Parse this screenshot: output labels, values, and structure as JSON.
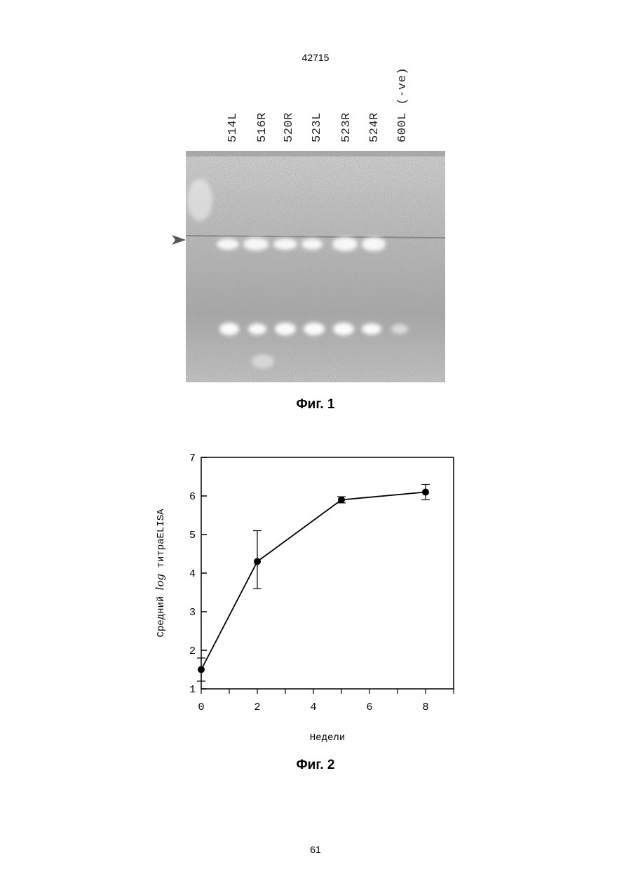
{
  "header": {
    "doc_number": "42715"
  },
  "figure1": {
    "lane_labels": [
      "514L",
      "516R",
      "520R",
      "523L",
      "523R",
      "524R",
      "600L (-ve)"
    ],
    "caption": "Фиг. 1"
  },
  "figure2": {
    "caption": "Фиг. 2",
    "chart_data": {
      "type": "line",
      "x": [
        0,
        2,
        5,
        8
      ],
      "series": [
        {
          "values": [
            1.5,
            4.3,
            5.9,
            6.1
          ],
          "error_low": [
            1.2,
            3.6,
            5.82,
            5.9
          ],
          "error_high": [
            1.8,
            5.1,
            5.98,
            6.3
          ]
        }
      ],
      "xlabel": "Недели",
      "ylabel_prefix": "Средний",
      "ylabel_log": "log",
      "ylabel_suffix": "титраELISA",
      "xlim": [
        0,
        9
      ],
      "ylim": [
        1,
        7
      ],
      "xticks": [
        0,
        2,
        4,
        6,
        8
      ],
      "yticks": [
        1,
        2,
        3,
        4,
        5,
        6,
        7
      ],
      "grid": false
    }
  },
  "footer": {
    "page_number": "61"
  }
}
